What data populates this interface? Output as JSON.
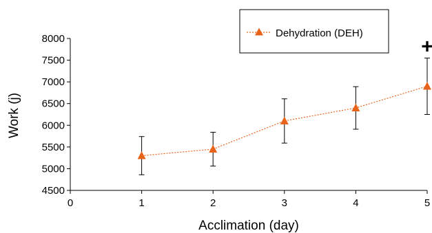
{
  "chart_data": {
    "type": "line",
    "title": "",
    "xlabel": "Acclimation (day)",
    "ylabel": "Work (j)",
    "xlim": [
      0,
      5
    ],
    "ylim": [
      4500,
      8000
    ],
    "x_ticks": [
      "0",
      "1",
      "2",
      "3",
      "4",
      "5"
    ],
    "y_ticks": [
      "4500",
      "5000",
      "5500",
      "6000",
      "6500",
      "7000",
      "7500",
      "8000"
    ],
    "grid": false,
    "legend_position": "top-right",
    "series": [
      {
        "name": "Dehydration (DEH)",
        "color": "#E8641B",
        "marker": "triangle",
        "line_style": "dotted",
        "x": [
          1,
          2,
          3,
          4,
          5
        ],
        "y": [
          5300,
          5450,
          6100,
          6400,
          6900
        ],
        "error": [
          440,
          390,
          510,
          490,
          650
        ]
      }
    ],
    "annotations": [
      {
        "text": "+",
        "x": 5,
        "y": 7820
      }
    ]
  }
}
